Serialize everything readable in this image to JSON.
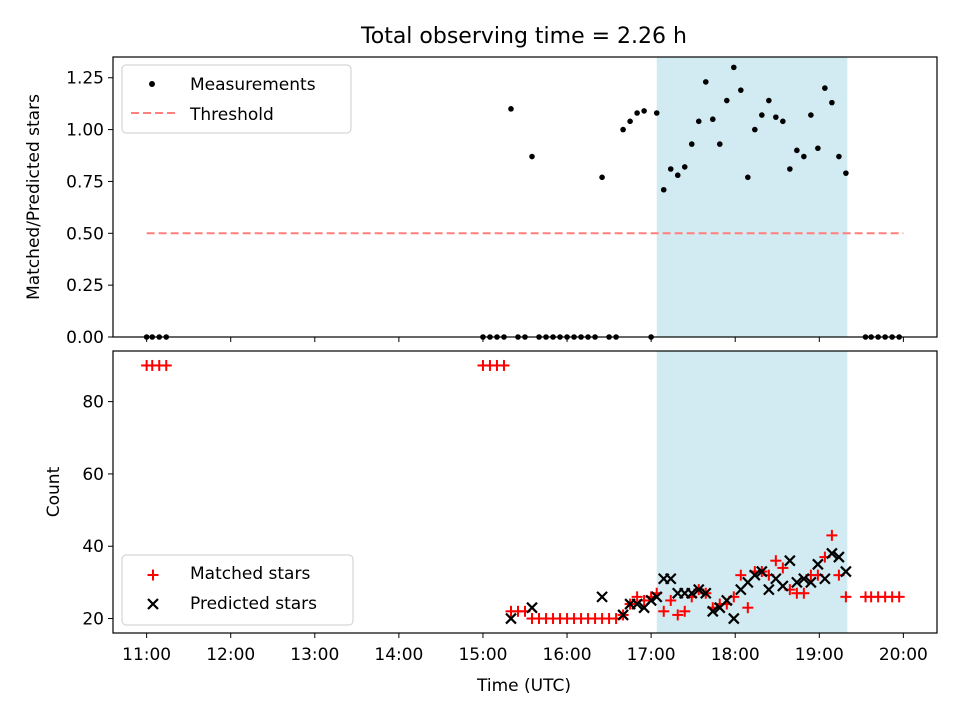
{
  "title": "Total observing time = 2.26 h",
  "colors": {
    "measurement": "#000000",
    "threshold": "#ff7f7f",
    "matched": "#ff0000",
    "predicted": "#000000",
    "span": "#add8e6"
  },
  "chart_data": [
    {
      "type": "scatter",
      "panel": "top",
      "title": "Total observing time = 2.26 h",
      "xlabel": "",
      "ylabel": "Matched/Predicted stars",
      "xlim": [
        "10:36",
        "20:24"
      ],
      "ylim": [
        0,
        1.35
      ],
      "yticks": [
        0.0,
        0.25,
        0.5,
        0.75,
        1.0,
        1.25
      ],
      "ytick_labels": [
        "0.00",
        "0.25",
        "0.50",
        "0.75",
        "1.00",
        "1.25"
      ],
      "legend_position": "upper left",
      "highlight_span": {
        "x0": "17:04",
        "x1": "19:20"
      },
      "series": [
        {
          "name": "Measurements",
          "kind": "scatter",
          "marker": "dot",
          "points": [
            [
              "11:00",
              0
            ],
            [
              "11:04",
              0
            ],
            [
              "11:09",
              0
            ],
            [
              "11:14",
              0
            ],
            [
              "15:00",
              0
            ],
            [
              "15:05",
              0
            ],
            [
              "15:10",
              0
            ],
            [
              "15:15",
              0
            ],
            [
              "15:20",
              1.1
            ],
            [
              "15:25",
              0
            ],
            [
              "15:30",
              0
            ],
            [
              "15:35",
              0.87
            ],
            [
              "15:40",
              0
            ],
            [
              "15:45",
              0
            ],
            [
              "15:50",
              0
            ],
            [
              "15:55",
              0
            ],
            [
              "16:00",
              0
            ],
            [
              "16:05",
              0
            ],
            [
              "16:10",
              0
            ],
            [
              "16:15",
              0
            ],
            [
              "16:20",
              0
            ],
            [
              "16:25",
              0.77
            ],
            [
              "16:30",
              0
            ],
            [
              "16:35",
              0
            ],
            [
              "16:40",
              1.0
            ],
            [
              "16:45",
              1.04
            ],
            [
              "16:50",
              1.08
            ],
            [
              "16:55",
              1.09
            ],
            [
              "17:00",
              0
            ],
            [
              "17:04",
              1.08
            ],
            [
              "17:09",
              0.71
            ],
            [
              "17:14",
              0.81
            ],
            [
              "17:19",
              0.78
            ],
            [
              "17:24",
              0.82
            ],
            [
              "17:29",
              0.93
            ],
            [
              "17:34",
              1.04
            ],
            [
              "17:39",
              1.23
            ],
            [
              "17:44",
              1.05
            ],
            [
              "17:49",
              0.93
            ],
            [
              "17:54",
              1.14
            ],
            [
              "17:59",
              1.3
            ],
            [
              "18:04",
              1.19
            ],
            [
              "18:09",
              0.77
            ],
            [
              "18:14",
              1.0
            ],
            [
              "18:19",
              1.07
            ],
            [
              "18:24",
              1.14
            ],
            [
              "18:29",
              1.06
            ],
            [
              "18:34",
              1.04
            ],
            [
              "18:39",
              0.81
            ],
            [
              "18:44",
              0.9
            ],
            [
              "18:49",
              0.87
            ],
            [
              "18:54",
              1.07
            ],
            [
              "18:59",
              0.91
            ],
            [
              "19:04",
              1.2
            ],
            [
              "19:09",
              1.13
            ],
            [
              "19:14",
              0.87
            ],
            [
              "19:19",
              0.79
            ],
            [
              "19:33",
              0
            ],
            [
              "19:37",
              0
            ],
            [
              "19:42",
              0
            ],
            [
              "19:47",
              0
            ],
            [
              "19:52",
              0
            ],
            [
              "19:57",
              0
            ]
          ]
        },
        {
          "name": "Threshold",
          "kind": "line",
          "style": "dashed",
          "points": [
            [
              "11:00",
              0.5
            ],
            [
              "20:00",
              0.5
            ]
          ]
        }
      ]
    },
    {
      "type": "scatter",
      "panel": "bottom",
      "xlabel": "Time (UTC)",
      "ylabel": "Count",
      "xlim": [
        "10:36",
        "20:24"
      ],
      "ylim": [
        16,
        94
      ],
      "xticks": [
        "11:00",
        "12:00",
        "13:00",
        "14:00",
        "15:00",
        "16:00",
        "17:00",
        "18:00",
        "19:00",
        "20:00"
      ],
      "yticks": [
        20,
        40,
        60,
        80
      ],
      "legend_position": "lower left",
      "highlight_span": {
        "x0": "17:04",
        "x1": "19:20"
      },
      "series": [
        {
          "name": "Matched stars",
          "kind": "scatter",
          "marker": "plus",
          "points": [
            [
              "11:00",
              90
            ],
            [
              "11:04",
              90
            ],
            [
              "11:09",
              90
            ],
            [
              "11:14",
              90
            ],
            [
              "15:00",
              90
            ],
            [
              "15:05",
              90
            ],
            [
              "15:10",
              90
            ],
            [
              "15:15",
              90
            ],
            [
              "15:20",
              22
            ],
            [
              "15:25",
              22
            ],
            [
              "15:30",
              22
            ],
            [
              "15:35",
              20
            ],
            [
              "15:40",
              20
            ],
            [
              "15:45",
              20
            ],
            [
              "15:50",
              20
            ],
            [
              "15:55",
              20
            ],
            [
              "16:00",
              20
            ],
            [
              "16:05",
              20
            ],
            [
              "16:10",
              20
            ],
            [
              "16:15",
              20
            ],
            [
              "16:20",
              20
            ],
            [
              "16:25",
              20
            ],
            [
              "16:30",
              20
            ],
            [
              "16:35",
              20
            ],
            [
              "16:40",
              21
            ],
            [
              "16:45",
              24
            ],
            [
              "16:50",
              26
            ],
            [
              "16:55",
              25
            ],
            [
              "17:00",
              26
            ],
            [
              "17:04",
              27
            ],
            [
              "17:09",
              22
            ],
            [
              "17:14",
              25
            ],
            [
              "17:19",
              21
            ],
            [
              "17:24",
              22
            ],
            [
              "17:29",
              26
            ],
            [
              "17:34",
              28
            ],
            [
              "17:39",
              27
            ],
            [
              "17:44",
              23
            ],
            [
              "17:49",
              24
            ],
            [
              "17:54",
              24
            ],
            [
              "17:59",
              26
            ],
            [
              "18:04",
              32
            ],
            [
              "18:09",
              23
            ],
            [
              "18:14",
              33
            ],
            [
              "18:19",
              33
            ],
            [
              "18:24",
              32
            ],
            [
              "18:29",
              36
            ],
            [
              "18:34",
              34
            ],
            [
              "18:39",
              28
            ],
            [
              "18:44",
              27
            ],
            [
              "18:49",
              27
            ],
            [
              "18:54",
              32
            ],
            [
              "18:59",
              32
            ],
            [
              "19:04",
              37
            ],
            [
              "19:09",
              43
            ],
            [
              "19:14",
              32
            ],
            [
              "19:19",
              26
            ],
            [
              "19:33",
              26
            ],
            [
              "19:37",
              26
            ],
            [
              "19:42",
              26
            ],
            [
              "19:47",
              26
            ],
            [
              "19:52",
              26
            ],
            [
              "19:57",
              26
            ]
          ]
        },
        {
          "name": "Predicted stars",
          "kind": "scatter",
          "marker": "cross",
          "points": [
            [
              "15:20",
              20
            ],
            [
              "15:35",
              23
            ],
            [
              "16:25",
              26
            ],
            [
              "16:40",
              21
            ],
            [
              "16:45",
              24
            ],
            [
              "16:50",
              24
            ],
            [
              "16:55",
              23
            ],
            [
              "17:00",
              25
            ],
            [
              "17:04",
              26
            ],
            [
              "17:09",
              31
            ],
            [
              "17:14",
              31
            ],
            [
              "17:19",
              27
            ],
            [
              "17:24",
              27
            ],
            [
              "17:29",
              27
            ],
            [
              "17:34",
              28
            ],
            [
              "17:39",
              27
            ],
            [
              "17:44",
              22
            ],
            [
              "17:49",
              23
            ],
            [
              "17:54",
              25
            ],
            [
              "17:59",
              20
            ],
            [
              "18:04",
              28
            ],
            [
              "18:09",
              30
            ],
            [
              "18:14",
              32
            ],
            [
              "18:19",
              33
            ],
            [
              "18:24",
              28
            ],
            [
              "18:29",
              31
            ],
            [
              "18:34",
              29
            ],
            [
              "18:39",
              36
            ],
            [
              "18:44",
              30
            ],
            [
              "18:49",
              31
            ],
            [
              "18:54",
              30
            ],
            [
              "18:59",
              35
            ],
            [
              "19:04",
              31
            ],
            [
              "19:09",
              38
            ],
            [
              "19:14",
              37
            ],
            [
              "19:19",
              33
            ]
          ]
        }
      ]
    }
  ]
}
